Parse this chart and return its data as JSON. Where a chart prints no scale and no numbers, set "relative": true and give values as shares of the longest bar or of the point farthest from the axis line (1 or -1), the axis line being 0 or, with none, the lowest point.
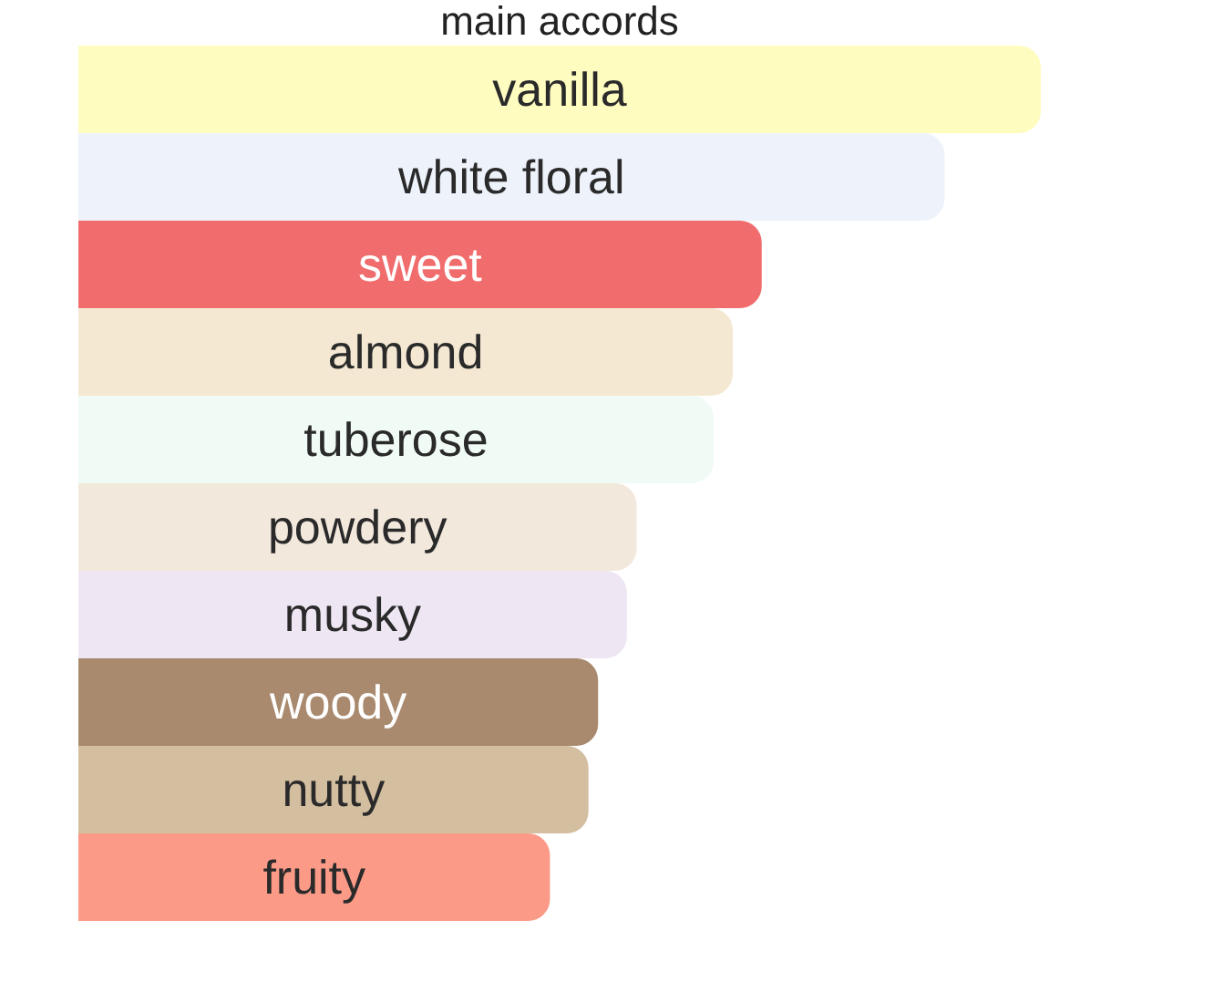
{
  "chart_data": {
    "type": "bar",
    "orientation": "horizontal",
    "relative": true,
    "title": "main accords",
    "categories": [
      "vanilla",
      "white floral",
      "sweet",
      "almond",
      "tuberose",
      "powdery",
      "musky",
      "woody",
      "nutty",
      "fruity"
    ],
    "values": [
      1,
      0.9,
      0.71,
      0.68,
      0.66,
      0.58,
      0.57,
      0.54,
      0.53,
      0.49
    ],
    "colors": [
      "#fffcc0",
      "#edf2fb",
      "#f16d6d",
      "#f4e8d3",
      "#f1fbf5",
      "#f3e8dc",
      "#efe6f3",
      "#a98a6f",
      "#d4bea0",
      "#fc9a88"
    ],
    "data_labels": false
  }
}
